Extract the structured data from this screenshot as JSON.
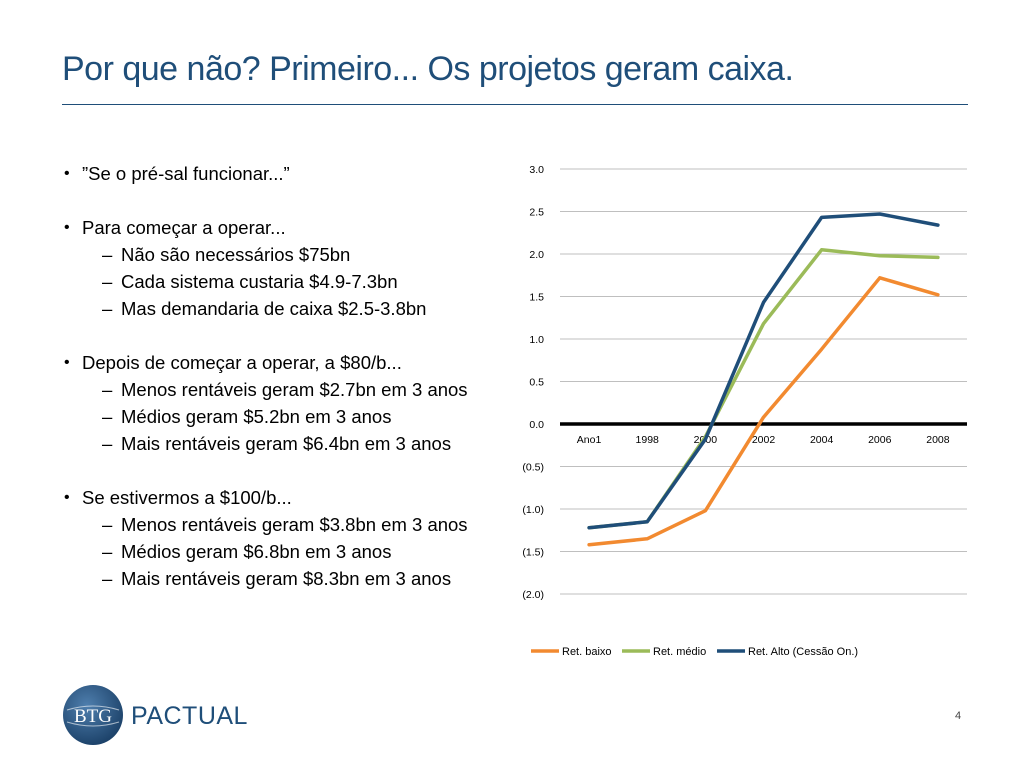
{
  "slide": {
    "title": "Por que não? Primeiro... Os projetos geram caixa.",
    "page_number": "4"
  },
  "bullets": [
    {
      "text": "”Se o pré-sal funcionar...”",
      "subs": []
    },
    {
      "text": "Para começar a operar...",
      "subs": [
        "Não são necessários $75bn",
        "Cada sistema custaria $4.9-7.3bn",
        "Mas demandaria de caixa $2.5-3.8bn"
      ]
    },
    {
      "text": "Depois de começar a operar, a $80/b...",
      "subs": [
        "Menos rentáveis geram $2.7bn em 3 anos",
        "Médios geram $5.2bn em 3 anos",
        "Mais rentáveis geram $6.4bn em 3 anos"
      ]
    },
    {
      "text": "Se estivermos a $100/b...",
      "subs": [
        "Menos rentáveis geram $3.8bn em 3 anos",
        "Médios geram $6.8bn em 3 anos",
        "Mais rentáveis geram $8.3bn em 3 anos"
      ]
    }
  ],
  "logo": {
    "badge": "BTG",
    "wordmark": "PACTUAL"
  },
  "colors": {
    "title": "#1f4e79",
    "grid": "#bfbfbf",
    "zero_line": "#000000",
    "logo": "#1f4e79"
  },
  "chart_data": {
    "type": "line",
    "categories": [
      "Ano1",
      "1998",
      "2000",
      "2002",
      "2004",
      "2006",
      "2008"
    ],
    "series": [
      {
        "name": "Ret. baixo",
        "color": "#f28a30",
        "values": [
          -1.42,
          -1.35,
          -1.02,
          0.08,
          0.88,
          1.72,
          1.52
        ]
      },
      {
        "name": "Ret. médio",
        "color": "#9bbb59",
        "values": [
          -1.22,
          -1.15,
          -0.15,
          1.18,
          2.05,
          1.98,
          1.96
        ]
      },
      {
        "name": "Ret. Alto (Cessão On.)",
        "color": "#1f4e79",
        "values": [
          -1.22,
          -1.15,
          -0.18,
          1.43,
          2.43,
          2.47,
          2.34
        ]
      }
    ],
    "y_ticks": [
      "3.0",
      "2.5",
      "2.0",
      "1.5",
      "1.0",
      "0.5",
      "0.0",
      "(0.5)",
      "(1.0)",
      "(1.5)",
      "(2.0)"
    ],
    "ylim": [
      -2.0,
      3.0
    ],
    "grid": true,
    "legend_position": "bottom"
  }
}
